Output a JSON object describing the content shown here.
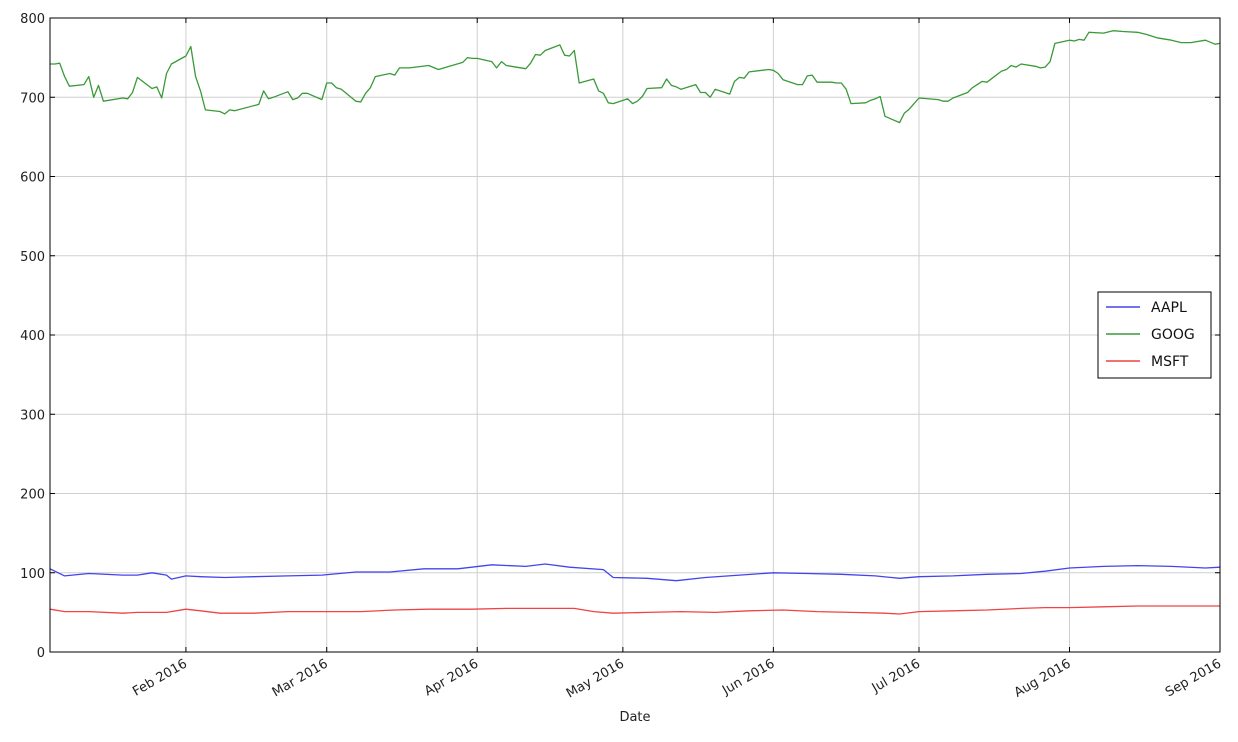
{
  "chart_data": {
    "type": "line",
    "title": "",
    "xlabel": "Date",
    "ylabel": "",
    "xlim": [
      "2016-01-04",
      "2016-09-01"
    ],
    "ylim": [
      0,
      800
    ],
    "grid": true,
    "legend_position": "center-right",
    "y_ticks": [
      0,
      100,
      200,
      300,
      400,
      500,
      600,
      700,
      800
    ],
    "x_ticks": [
      {
        "date": "2016-02-01",
        "label": "Feb 2016"
      },
      {
        "date": "2016-03-01",
        "label": "Mar 2016"
      },
      {
        "date": "2016-04-01",
        "label": "Apr 2016"
      },
      {
        "date": "2016-05-01",
        "label": "May 2016"
      },
      {
        "date": "2016-06-01",
        "label": "Jun 2016"
      },
      {
        "date": "2016-07-01",
        "label": "Jul 2016"
      },
      {
        "date": "2016-08-01",
        "label": "Aug 2016"
      },
      {
        "date": "2016-09-01",
        "label": "Sep 2016"
      }
    ],
    "series": [
      {
        "name": "AAPL",
        "color": "#4444ee",
        "points": [
          [
            "2016-01-04",
            105
          ],
          [
            "2016-01-07",
            96
          ],
          [
            "2016-01-12",
            99
          ],
          [
            "2016-01-19",
            97
          ],
          [
            "2016-01-22",
            97
          ],
          [
            "2016-01-25",
            100
          ],
          [
            "2016-01-28",
            97
          ],
          [
            "2016-01-29",
            92
          ],
          [
            "2016-02-01",
            96
          ],
          [
            "2016-02-04",
            95
          ],
          [
            "2016-02-09",
            94
          ],
          [
            "2016-02-15",
            95
          ],
          [
            "2016-02-22",
            96
          ],
          [
            "2016-02-29",
            97
          ],
          [
            "2016-03-07",
            101
          ],
          [
            "2016-03-14",
            101
          ],
          [
            "2016-03-21",
            105
          ],
          [
            "2016-03-28",
            105
          ],
          [
            "2016-04-04",
            110
          ],
          [
            "2016-04-11",
            108
          ],
          [
            "2016-04-15",
            111
          ],
          [
            "2016-04-20",
            107
          ],
          [
            "2016-04-27",
            104
          ],
          [
            "2016-04-29",
            94
          ],
          [
            "2016-05-06",
            93
          ],
          [
            "2016-05-12",
            90
          ],
          [
            "2016-05-18",
            94
          ],
          [
            "2016-05-25",
            97
          ],
          [
            "2016-06-01",
            100
          ],
          [
            "2016-06-08",
            99
          ],
          [
            "2016-06-15",
            98
          ],
          [
            "2016-06-22",
            96
          ],
          [
            "2016-06-27",
            93
          ],
          [
            "2016-07-01",
            95
          ],
          [
            "2016-07-08",
            96
          ],
          [
            "2016-07-15",
            98
          ],
          [
            "2016-07-22",
            99
          ],
          [
            "2016-07-27",
            102
          ],
          [
            "2016-08-01",
            106
          ],
          [
            "2016-08-08",
            108
          ],
          [
            "2016-08-15",
            109
          ],
          [
            "2016-08-22",
            108
          ],
          [
            "2016-08-29",
            106
          ],
          [
            "2016-09-01",
            107
          ]
        ]
      },
      {
        "name": "GOOG",
        "color": "#3a9a3a",
        "points": [
          [
            "2016-01-04",
            742
          ],
          [
            "2016-01-05",
            742
          ],
          [
            "2016-01-06",
            743
          ],
          [
            "2016-01-07",
            726
          ],
          [
            "2016-01-08",
            714
          ],
          [
            "2016-01-11",
            716
          ],
          [
            "2016-01-12",
            726
          ],
          [
            "2016-01-13",
            700
          ],
          [
            "2016-01-14",
            715
          ],
          [
            "2016-01-15",
            695
          ],
          [
            "2016-01-19",
            699
          ],
          [
            "2016-01-20",
            698
          ],
          [
            "2016-01-21",
            706
          ],
          [
            "2016-01-22",
            725
          ],
          [
            "2016-01-25",
            711
          ],
          [
            "2016-01-26",
            713
          ],
          [
            "2016-01-27",
            699
          ],
          [
            "2016-01-28",
            730
          ],
          [
            "2016-01-29",
            742
          ],
          [
            "2016-02-01",
            752
          ],
          [
            "2016-02-02",
            764
          ],
          [
            "2016-02-03",
            726
          ],
          [
            "2016-02-04",
            708
          ],
          [
            "2016-02-05",
            684
          ],
          [
            "2016-02-08",
            682
          ],
          [
            "2016-02-09",
            679
          ],
          [
            "2016-02-10",
            684
          ],
          [
            "2016-02-11",
            683
          ],
          [
            "2016-02-16",
            691
          ],
          [
            "2016-02-17",
            708
          ],
          [
            "2016-02-18",
            698
          ],
          [
            "2016-02-19",
            700
          ],
          [
            "2016-02-22",
            707
          ],
          [
            "2016-02-23",
            697
          ],
          [
            "2016-02-24",
            699
          ],
          [
            "2016-02-25",
            705
          ],
          [
            "2016-02-26",
            705
          ],
          [
            "2016-02-29",
            697
          ],
          [
            "2016-03-01",
            718
          ],
          [
            "2016-03-02",
            718
          ],
          [
            "2016-03-03",
            712
          ],
          [
            "2016-03-04",
            710
          ],
          [
            "2016-03-07",
            695
          ],
          [
            "2016-03-08",
            694
          ],
          [
            "2016-03-09",
            705
          ],
          [
            "2016-03-10",
            712
          ],
          [
            "2016-03-11",
            726
          ],
          [
            "2016-03-14",
            730
          ],
          [
            "2016-03-15",
            728
          ],
          [
            "2016-03-16",
            737
          ],
          [
            "2016-03-17",
            737
          ],
          [
            "2016-03-18",
            737
          ],
          [
            "2016-03-22",
            740
          ],
          [
            "2016-03-24",
            735
          ],
          [
            "2016-03-29",
            744
          ],
          [
            "2016-03-30",
            750
          ],
          [
            "2016-03-31",
            749
          ],
          [
            "2016-04-01",
            749
          ],
          [
            "2016-04-04",
            745
          ],
          [
            "2016-04-05",
            737
          ],
          [
            "2016-04-06",
            745
          ],
          [
            "2016-04-07",
            740
          ],
          [
            "2016-04-08",
            739
          ],
          [
            "2016-04-11",
            736
          ],
          [
            "2016-04-12",
            743
          ],
          [
            "2016-04-13",
            754
          ],
          [
            "2016-04-14",
            753
          ],
          [
            "2016-04-15",
            759
          ],
          [
            "2016-04-18",
            766
          ],
          [
            "2016-04-19",
            753
          ],
          [
            "2016-04-20",
            752
          ],
          [
            "2016-04-21",
            759
          ],
          [
            "2016-04-22",
            718
          ],
          [
            "2016-04-25",
            723
          ],
          [
            "2016-04-26",
            708
          ],
          [
            "2016-04-27",
            705
          ],
          [
            "2016-04-28",
            693
          ],
          [
            "2016-04-29",
            692
          ],
          [
            "2016-05-02",
            698
          ],
          [
            "2016-05-03",
            692
          ],
          [
            "2016-05-04",
            695
          ],
          [
            "2016-05-05",
            701
          ],
          [
            "2016-05-06",
            711
          ],
          [
            "2016-05-09",
            712
          ],
          [
            "2016-05-10",
            723
          ],
          [
            "2016-05-11",
            715
          ],
          [
            "2016-05-12",
            713
          ],
          [
            "2016-05-13",
            710
          ],
          [
            "2016-05-16",
            716
          ],
          [
            "2016-05-17",
            706
          ],
          [
            "2016-05-18",
            706
          ],
          [
            "2016-05-19",
            700
          ],
          [
            "2016-05-20",
            710
          ],
          [
            "2016-05-23",
            704
          ],
          [
            "2016-05-24",
            720
          ],
          [
            "2016-05-25",
            725
          ],
          [
            "2016-05-26",
            724
          ],
          [
            "2016-05-27",
            732
          ],
          [
            "2016-05-31",
            735
          ],
          [
            "2016-06-01",
            734
          ],
          [
            "2016-06-02",
            730
          ],
          [
            "2016-06-03",
            722
          ],
          [
            "2016-06-06",
            716
          ],
          [
            "2016-06-07",
            716
          ],
          [
            "2016-06-08",
            727
          ],
          [
            "2016-06-09",
            728
          ],
          [
            "2016-06-10",
            719
          ],
          [
            "2016-06-13",
            719
          ],
          [
            "2016-06-14",
            718
          ],
          [
            "2016-06-15",
            718
          ],
          [
            "2016-06-16",
            710
          ],
          [
            "2016-06-17",
            692
          ],
          [
            "2016-06-20",
            693
          ],
          [
            "2016-06-21",
            696
          ],
          [
            "2016-06-22",
            698
          ],
          [
            "2016-06-23",
            701
          ],
          [
            "2016-06-24",
            676
          ],
          [
            "2016-06-27",
            668
          ],
          [
            "2016-06-28",
            680
          ],
          [
            "2016-06-29",
            685
          ],
          [
            "2016-06-30",
            692
          ],
          [
            "2016-07-01",
            699
          ],
          [
            "2016-07-05",
            697
          ],
          [
            "2016-07-06",
            695
          ],
          [
            "2016-07-07",
            695
          ],
          [
            "2016-07-08",
            699
          ],
          [
            "2016-07-11",
            706
          ],
          [
            "2016-07-12",
            712
          ],
          [
            "2016-07-13",
            716
          ],
          [
            "2016-07-14",
            720
          ],
          [
            "2016-07-15",
            719
          ],
          [
            "2016-07-18",
            733
          ],
          [
            "2016-07-19",
            735
          ],
          [
            "2016-07-20",
            740
          ],
          [
            "2016-07-21",
            738
          ],
          [
            "2016-07-22",
            742
          ],
          [
            "2016-07-25",
            739
          ],
          [
            "2016-07-26",
            737
          ],
          [
            "2016-07-27",
            738
          ],
          [
            "2016-07-28",
            745
          ],
          [
            "2016-07-29",
            768
          ],
          [
            "2016-08-01",
            772
          ],
          [
            "2016-08-02",
            771
          ],
          [
            "2016-08-03",
            773
          ],
          [
            "2016-08-04",
            772
          ],
          [
            "2016-08-05",
            782
          ],
          [
            "2016-08-08",
            781
          ],
          [
            "2016-08-10",
            784
          ],
          [
            "2016-08-12",
            783
          ],
          [
            "2016-08-15",
            782
          ],
          [
            "2016-08-17",
            779
          ],
          [
            "2016-08-19",
            775
          ],
          [
            "2016-08-22",
            772
          ],
          [
            "2016-08-24",
            769
          ],
          [
            "2016-08-26",
            769
          ],
          [
            "2016-08-29",
            772
          ],
          [
            "2016-08-31",
            767
          ],
          [
            "2016-09-01",
            768
          ]
        ]
      },
      {
        "name": "MSFT",
        "color": "#ee4444",
        "points": [
          [
            "2016-01-04",
            54
          ],
          [
            "2016-01-07",
            51
          ],
          [
            "2016-01-12",
            51
          ],
          [
            "2016-01-19",
            49
          ],
          [
            "2016-01-22",
            50
          ],
          [
            "2016-01-28",
            50
          ],
          [
            "2016-02-01",
            54
          ],
          [
            "2016-02-04",
            52
          ],
          [
            "2016-02-08",
            49
          ],
          [
            "2016-02-15",
            49
          ],
          [
            "2016-02-22",
            51
          ],
          [
            "2016-03-01",
            51
          ],
          [
            "2016-03-08",
            51
          ],
          [
            "2016-03-15",
            53
          ],
          [
            "2016-03-22",
            54
          ],
          [
            "2016-03-31",
            54
          ],
          [
            "2016-04-07",
            55
          ],
          [
            "2016-04-14",
            55
          ],
          [
            "2016-04-21",
            55
          ],
          [
            "2016-04-25",
            51
          ],
          [
            "2016-04-29",
            49
          ],
          [
            "2016-05-06",
            50
          ],
          [
            "2016-05-13",
            51
          ],
          [
            "2016-05-20",
            50
          ],
          [
            "2016-05-27",
            52
          ],
          [
            "2016-06-03",
            53
          ],
          [
            "2016-06-10",
            51
          ],
          [
            "2016-06-17",
            50
          ],
          [
            "2016-06-24",
            49
          ],
          [
            "2016-06-27",
            48
          ],
          [
            "2016-07-01",
            51
          ],
          [
            "2016-07-08",
            52
          ],
          [
            "2016-07-15",
            53
          ],
          [
            "2016-07-22",
            55
          ],
          [
            "2016-07-27",
            56
          ],
          [
            "2016-08-01",
            56
          ],
          [
            "2016-08-08",
            57
          ],
          [
            "2016-08-15",
            58
          ],
          [
            "2016-08-22",
            58
          ],
          [
            "2016-08-29",
            58
          ],
          [
            "2016-09-01",
            58
          ]
        ]
      }
    ]
  }
}
